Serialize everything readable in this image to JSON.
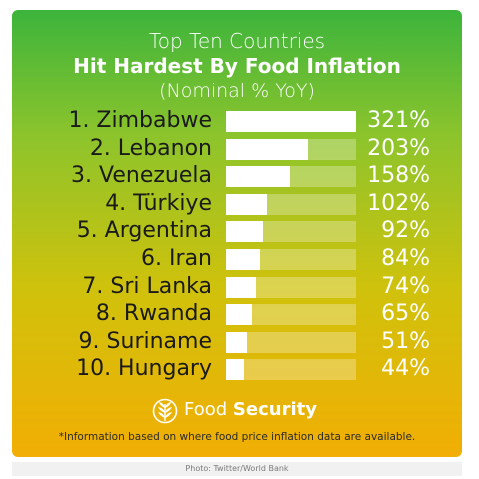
{
  "title": {
    "line1": "Top Ten Countries",
    "line2": "Hit Hardest By Food Inflation",
    "line3": "(Nominal % YoY)"
  },
  "chart_data": {
    "type": "bar",
    "orientation": "horizontal",
    "categories": [
      "Zimbabwe",
      "Lebanon",
      "Venezuela",
      "Türkiye",
      "Argentina",
      "Iran",
      "Sri Lanka",
      "Rwanda",
      "Suriname",
      "Hungary"
    ],
    "rank_labels": [
      "1. Zimbabwe",
      "2. Lebanon",
      "3. Venezuela",
      "4. Türkiye",
      "5. Argentina",
      "6. Iran",
      "7. Sri Lanka",
      "8. Rwanda",
      "9. Suriname",
      "10. Hungary"
    ],
    "values": [
      321,
      203,
      158,
      102,
      92,
      84,
      74,
      65,
      51,
      44
    ],
    "value_labels": [
      "321%",
      "203%",
      "158%",
      "102%",
      "92%",
      "84%",
      "74%",
      "65%",
      "51%",
      "44%"
    ],
    "xlim": [
      0,
      321
    ],
    "grid": false,
    "legend": "none"
  },
  "brand": {
    "icon": "globe-wheat-icon",
    "name_light": "Food",
    "name_bold": "Security"
  },
  "footnote": "*Information based on where food price inflation data are available.",
  "credit": "Photo: Twitter/World Bank",
  "colors": {
    "bar_fill": "#ffffff",
    "background_top": "#3cb43c",
    "background_bottom": "#f2ae04"
  }
}
